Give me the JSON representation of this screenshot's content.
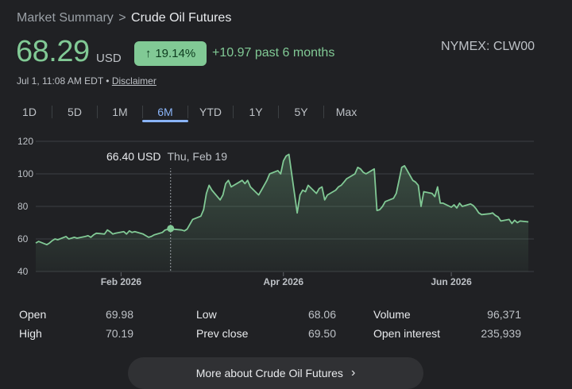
{
  "breadcrumb": {
    "parent": "Market Summary",
    "separator": ">",
    "current": "Crude Oil Futures"
  },
  "quote": {
    "price": "68.29",
    "currency": "USD",
    "change_percent": "19.14%",
    "change_text": "+10.97 past 6 months",
    "ticker": "NYMEX: CLW00",
    "timestamp": "Jul 1, 11:08 AM EDT",
    "bullet": "•",
    "disclaimer": "Disclaimer"
  },
  "tabs": [
    "1D",
    "5D",
    "1M",
    "6M",
    "YTD",
    "1Y",
    "5Y",
    "Max"
  ],
  "active_tab": "6M",
  "tooltip": {
    "value": "66.40 USD",
    "date": "Thu, Feb 19"
  },
  "colors": {
    "up": "#81c995",
    "accent": "#8ab4f8",
    "background": "#202124"
  },
  "icons": {
    "badge": "arrow-up-icon",
    "button": "chevron-right-icon"
  },
  "chart_data": {
    "type": "area",
    "ylim": [
      40,
      120
    ],
    "yticks": [
      40,
      60,
      80,
      100,
      120
    ],
    "xlim": [
      "2026-01-01",
      "2026-07-01"
    ],
    "xticks": [
      {
        "label": "Feb 2026",
        "date": "2026-02-01"
      },
      {
        "label": "Apr 2026",
        "date": "2026-04-01"
      },
      {
        "label": "Jun 2026",
        "date": "2026-06-01"
      }
    ],
    "grid": true,
    "highlight": {
      "date": "2026-02-19",
      "value": 66.4
    },
    "points": [
      [
        "2026-01-01",
        57.5
      ],
      [
        "2026-01-02",
        58.5
      ],
      [
        "2026-01-05",
        56.5
      ],
      [
        "2026-01-06",
        57.5
      ],
      [
        "2026-01-07",
        59.0
      ],
      [
        "2026-01-08",
        60.0
      ],
      [
        "2026-01-09",
        59.5
      ],
      [
        "2026-01-12",
        61.5
      ],
      [
        "2026-01-13",
        60.0
      ],
      [
        "2026-01-14",
        60.5
      ],
      [
        "2026-01-15",
        61.0
      ],
      [
        "2026-01-16",
        60.5
      ],
      [
        "2026-01-19",
        61.5
      ],
      [
        "2026-01-20",
        62.0
      ],
      [
        "2026-01-21",
        61.0
      ],
      [
        "2026-01-22",
        62.5
      ],
      [
        "2026-01-23",
        63.5
      ],
      [
        "2026-01-26",
        63.0
      ],
      [
        "2026-01-27",
        65.5
      ],
      [
        "2026-01-28",
        64.5
      ],
      [
        "2026-01-29",
        63.0
      ],
      [
        "2026-01-30",
        63.5
      ],
      [
        "2026-02-02",
        64.5
      ],
      [
        "2026-02-03",
        63.0
      ],
      [
        "2026-02-04",
        65.0
      ],
      [
        "2026-02-05",
        64.0
      ],
      [
        "2026-02-06",
        64.5
      ],
      [
        "2026-02-09",
        63.0
      ],
      [
        "2026-02-10",
        62.0
      ],
      [
        "2026-02-11",
        61.0
      ],
      [
        "2026-02-12",
        61.5
      ],
      [
        "2026-02-13",
        62.5
      ],
      [
        "2026-02-16",
        64.0
      ],
      [
        "2026-02-17",
        65.5
      ],
      [
        "2026-02-19",
        66.4
      ],
      [
        "2026-02-20",
        66.0
      ],
      [
        "2026-02-23",
        65.5
      ],
      [
        "2026-02-24",
        65.0
      ],
      [
        "2026-02-25",
        66.0
      ],
      [
        "2026-02-26",
        69.0
      ],
      [
        "2026-02-27",
        72.0
      ],
      [
        "2026-03-02",
        74.0
      ],
      [
        "2026-03-03",
        78.0
      ],
      [
        "2026-03-04",
        88.0
      ],
      [
        "2026-03-05",
        93.0
      ],
      [
        "2026-03-06",
        90.0
      ],
      [
        "2026-03-09",
        84.0
      ],
      [
        "2026-03-10",
        87.0
      ],
      [
        "2026-03-11",
        94.0
      ],
      [
        "2026-03-12",
        96.0
      ],
      [
        "2026-03-13",
        92.0
      ],
      [
        "2026-03-16",
        95.0
      ],
      [
        "2026-03-17",
        96.0
      ],
      [
        "2026-03-18",
        94.0
      ],
      [
        "2026-03-19",
        96.0
      ],
      [
        "2026-03-20",
        92.0
      ],
      [
        "2026-03-23",
        87.0
      ],
      [
        "2026-03-24",
        90.0
      ],
      [
        "2026-03-25",
        93.0
      ],
      [
        "2026-03-26",
        96.0
      ],
      [
        "2026-03-27",
        100.0
      ],
      [
        "2026-03-30",
        102.0
      ],
      [
        "2026-03-31",
        100.0
      ],
      [
        "2026-04-01",
        108.0
      ],
      [
        "2026-04-02",
        111.0
      ],
      [
        "2026-04-03",
        112.0
      ],
      [
        "2026-04-06",
        76.0
      ],
      [
        "2026-04-07",
        87.0
      ],
      [
        "2026-04-08",
        90.0
      ],
      [
        "2026-04-09",
        89.0
      ],
      [
        "2026-04-10",
        93.0
      ],
      [
        "2026-04-13",
        88.0
      ],
      [
        "2026-04-14",
        91.0
      ],
      [
        "2026-04-15",
        92.0
      ],
      [
        "2026-04-16",
        84.0
      ],
      [
        "2026-04-17",
        87.0
      ],
      [
        "2026-04-20",
        90.0
      ],
      [
        "2026-04-21",
        92.0
      ],
      [
        "2026-04-22",
        93.0
      ],
      [
        "2026-04-23",
        95.0
      ],
      [
        "2026-04-24",
        97.0
      ],
      [
        "2026-04-27",
        100.0
      ],
      [
        "2026-04-28",
        104.0
      ],
      [
        "2026-04-29",
        103.0
      ],
      [
        "2026-04-30",
        101.0
      ],
      [
        "2026-05-01",
        100.0
      ],
      [
        "2026-05-04",
        103.0
      ],
      [
        "2026-05-05",
        77.5
      ],
      [
        "2026-05-06",
        78.0
      ],
      [
        "2026-05-07",
        80.0
      ],
      [
        "2026-05-08",
        83.0
      ],
      [
        "2026-05-11",
        85.0
      ],
      [
        "2026-05-12",
        88.0
      ],
      [
        "2026-05-13",
        96.0
      ],
      [
        "2026-05-14",
        104.0
      ],
      [
        "2026-05-15",
        105.0
      ],
      [
        "2026-05-18",
        96.0
      ],
      [
        "2026-05-19",
        95.0
      ],
      [
        "2026-05-20",
        93.0
      ],
      [
        "2026-05-21",
        80.0
      ],
      [
        "2026-05-22",
        89.0
      ],
      [
        "2026-05-25",
        88.0
      ],
      [
        "2026-05-26",
        86.0
      ],
      [
        "2026-05-27",
        92.0
      ],
      [
        "2026-05-28",
        82.0
      ],
      [
        "2026-05-29",
        82.0
      ],
      [
        "2026-06-01",
        79.5
      ],
      [
        "2026-06-02",
        81.0
      ],
      [
        "2026-06-03",
        79.0
      ],
      [
        "2026-06-04",
        82.0
      ],
      [
        "2026-06-05",
        80.0
      ],
      [
        "2026-06-08",
        81.5
      ],
      [
        "2026-06-09",
        80.5
      ],
      [
        "2026-06-10",
        78.5
      ],
      [
        "2026-06-11",
        76.0
      ],
      [
        "2026-06-12",
        75.0
      ],
      [
        "2026-06-15",
        75.5
      ],
      [
        "2026-06-16",
        76.0
      ],
      [
        "2026-06-17",
        74.5
      ],
      [
        "2026-06-18",
        73.5
      ],
      [
        "2026-06-19",
        71.0
      ],
      [
        "2026-06-22",
        72.0
      ],
      [
        "2026-06-23",
        69.5
      ],
      [
        "2026-06-24",
        71.5
      ],
      [
        "2026-06-25",
        70.0
      ],
      [
        "2026-06-26",
        71.0
      ],
      [
        "2026-06-29",
        70.5
      ]
    ]
  },
  "stats": [
    {
      "label": "Open",
      "value": "69.98"
    },
    {
      "label": "High",
      "value": "70.19"
    },
    {
      "label": "Low",
      "value": "68.06"
    },
    {
      "label": "Prev close",
      "value": "69.50"
    },
    {
      "label": "Volume",
      "value": "96,371"
    },
    {
      "label": "Open interest",
      "value": "235,939"
    }
  ],
  "more_button": {
    "label": "More about Crude Oil Futures"
  }
}
